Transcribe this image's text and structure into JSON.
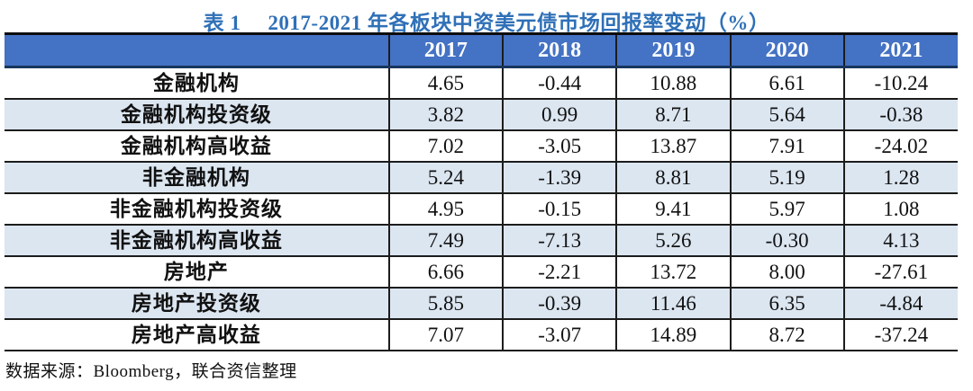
{
  "title": {
    "table_no": "表 1",
    "text": "2017-2021 年各板块中资美元债市场回报率变动（%）"
  },
  "table": {
    "header": [
      "",
      "2017",
      "2018",
      "2019",
      "2020",
      "2021"
    ],
    "rows": [
      {
        "label": "金融机构",
        "values": [
          "4.65",
          "-0.44",
          "10.88",
          "6.61",
          "-10.24"
        ]
      },
      {
        "label": "金融机构投资级",
        "values": [
          "3.82",
          "0.99",
          "8.71",
          "5.64",
          "-0.38"
        ]
      },
      {
        "label": "金融机构高收益",
        "values": [
          "7.02",
          "-3.05",
          "13.87",
          "7.91",
          "-24.02"
        ]
      },
      {
        "label": "非金融机构",
        "values": [
          "5.24",
          "-1.39",
          "8.81",
          "5.19",
          "1.28"
        ]
      },
      {
        "label": "非金融机构投资级",
        "values": [
          "4.95",
          "-0.15",
          "9.41",
          "5.97",
          "1.08"
        ]
      },
      {
        "label": "非金融机构高收益",
        "values": [
          "7.49",
          "-7.13",
          "5.26",
          "-0.30",
          "4.13"
        ]
      },
      {
        "label": "房地产",
        "values": [
          "6.66",
          "-2.21",
          "13.72",
          "8.00",
          "-27.61"
        ]
      },
      {
        "label": "房地产投资级",
        "values": [
          "5.85",
          "-0.39",
          "11.46",
          "6.35",
          "-4.84"
        ]
      },
      {
        "label": "房地产高收益",
        "values": [
          "7.07",
          "-3.07",
          "14.89",
          "8.72",
          "-37.24"
        ]
      }
    ]
  },
  "footer": {
    "source": "数据来源：Bloomberg，联合资信整理"
  },
  "colors": {
    "header_bg": "#4472C4",
    "header_text": "#FFFFFF",
    "alt_row_bg": "#DCE6F1",
    "title_text": "#2F70B7",
    "border": "#1C1C1C"
  },
  "chart_data": {
    "type": "table",
    "title": "表 1 2017-2021 年各板块中资美元债市场回报率变动（%）",
    "categories": [
      "2017",
      "2018",
      "2019",
      "2020",
      "2021"
    ],
    "series": [
      {
        "name": "金融机构",
        "values": [
          4.65,
          -0.44,
          10.88,
          6.61,
          -10.24
        ]
      },
      {
        "name": "金融机构投资级",
        "values": [
          3.82,
          0.99,
          8.71,
          5.64,
          -0.38
        ]
      },
      {
        "name": "金融机构高收益",
        "values": [
          7.02,
          -3.05,
          13.87,
          7.91,
          -24.02
        ]
      },
      {
        "name": "非金融机构",
        "values": [
          5.24,
          -1.39,
          8.81,
          5.19,
          1.28
        ]
      },
      {
        "name": "非金融机构投资级",
        "values": [
          4.95,
          -0.15,
          9.41,
          5.97,
          1.08
        ]
      },
      {
        "name": "非金融机构高收益",
        "values": [
          7.49,
          -7.13,
          5.26,
          -0.3,
          4.13
        ]
      },
      {
        "name": "房地产",
        "values": [
          6.66,
          -2.21,
          13.72,
          8.0,
          -27.61
        ]
      },
      {
        "name": "房地产投资级",
        "values": [
          5.85,
          -0.39,
          11.46,
          6.35,
          -4.84
        ]
      },
      {
        "name": "房地产高收益",
        "values": [
          7.07,
          -3.07,
          14.89,
          8.72,
          -37.24
        ]
      }
    ],
    "unit": "%",
    "source": "数据来源：Bloomberg，联合资信整理"
  }
}
